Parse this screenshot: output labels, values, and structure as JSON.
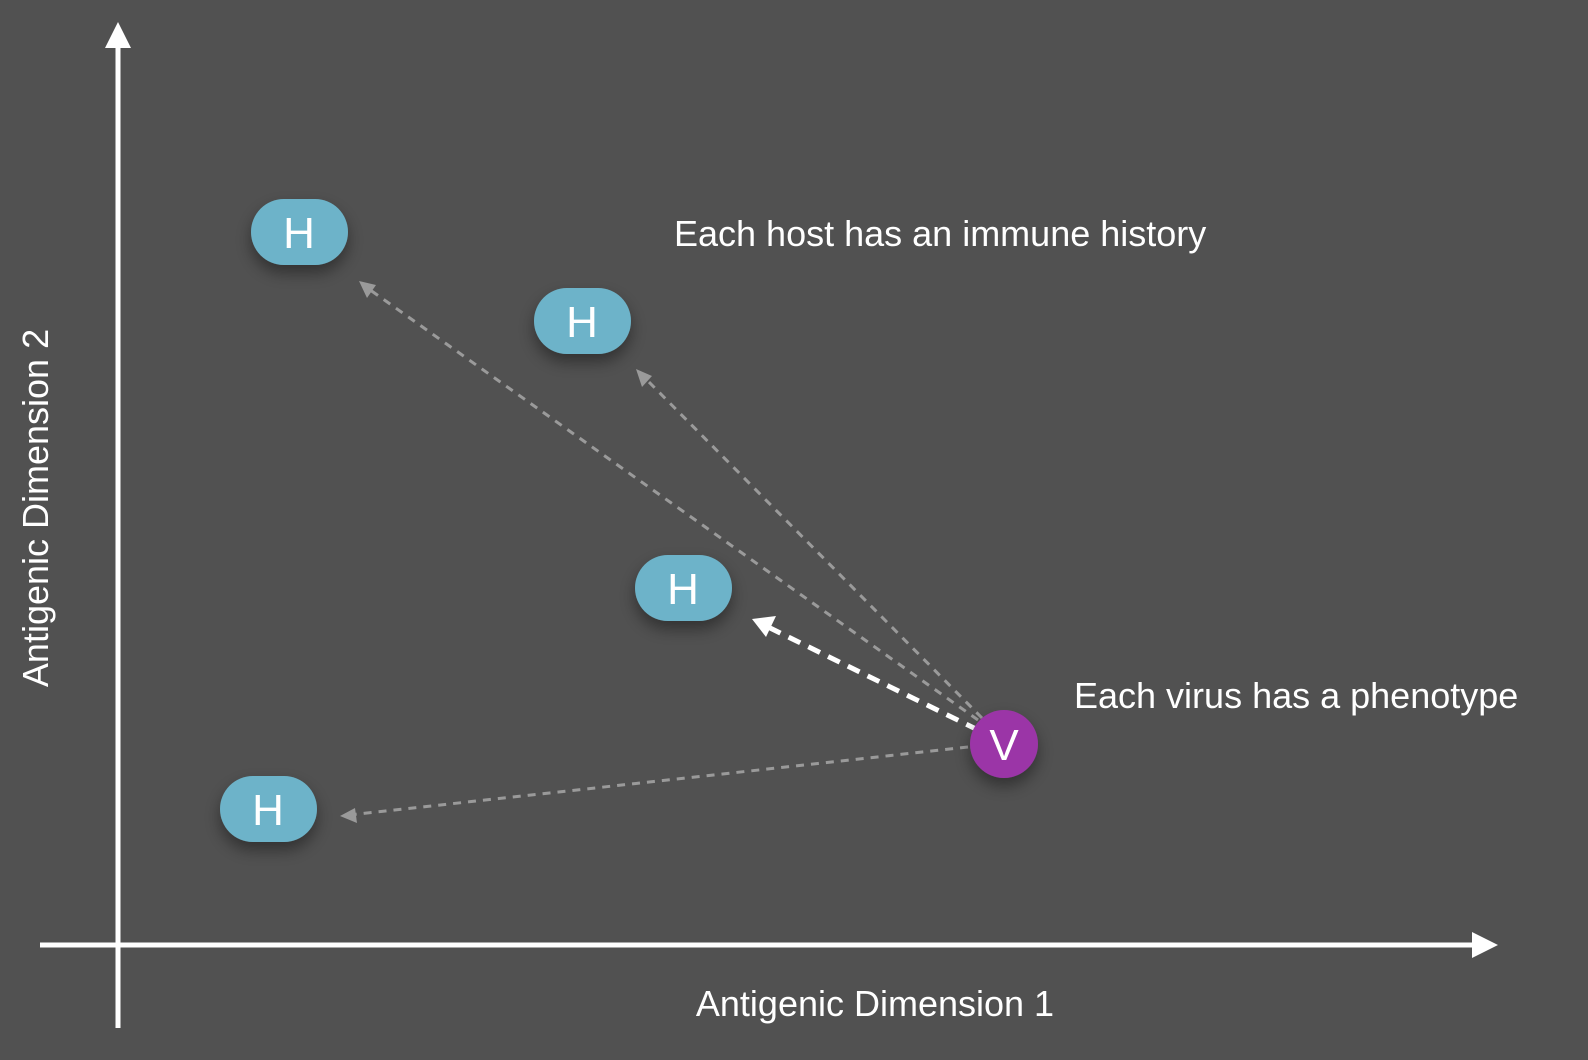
{
  "axes": {
    "x_label": "Antigenic Dimension 1",
    "y_label": "Antigenic Dimension 2"
  },
  "annotations": {
    "hosts": "Each host has an immune history",
    "virus": "Each virus has a phenotype"
  },
  "nodes": {
    "host_letter": "H",
    "virus_letter": "V"
  },
  "colors": {
    "background": "#515151",
    "host": "#6db3c9",
    "virus": "#9b36a7",
    "strong_arrow": "#ffffff",
    "faint_arrow": "#9a9a9a"
  }
}
